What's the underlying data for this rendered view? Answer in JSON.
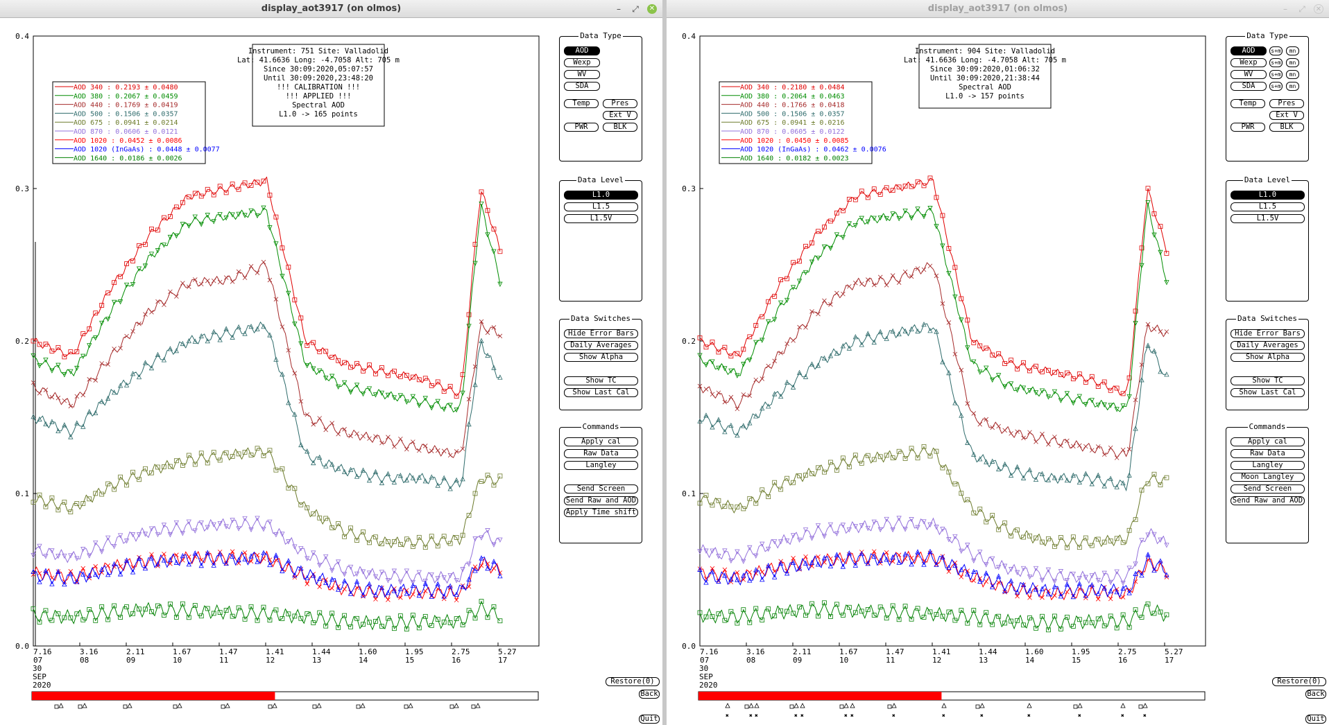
{
  "windows": [
    {
      "title": "display_aot3917 (on olmos)",
      "info": [
        "Instrument: 751 Site: Valladolid",
        "Lat: 41.6636 Long: -4.7058 Alt: 705 m",
        "Since 30:09:2020,05:07:57",
        "Until 30:09:2020,23:48:20",
        "!!! CALIBRATION !!!",
        "!!!   APPLIED   !!!",
        "Spectral AOD",
        "L1.0 -> 165 points"
      ],
      "legend": [
        {
          "label": "AOD 340  : 0.2193 ± 0.0480",
          "color": "#e00000"
        },
        {
          "label": "AOD 380  : 0.2067 ± 0.0459",
          "color": "#008c00"
        },
        {
          "label": "AOD 440  : 0.1769 ± 0.0419",
          "color": "#a52a2a"
        },
        {
          "label": "AOD 500  : 0.1506 ± 0.0357",
          "color": "#2e6b6b"
        },
        {
          "label": "AOD 675  : 0.0941 ± 0.0214",
          "color": "#6b7a2a"
        },
        {
          "label": "AOD 870  : 0.0606 ± 0.0121",
          "color": "#9370db"
        },
        {
          "label": "AOD 1020  : 0.0452 ± 0.0086",
          "color": "#ff0000"
        },
        {
          "label": "AOD 1020 (InGaAs)  : 0.0448 ± 0.0077",
          "color": "#0000ff"
        },
        {
          "label": "AOD 1640  : 0.0186 ± 0.0026",
          "color": "#008000"
        }
      ],
      "commands": [
        "Apply cal",
        "Raw Data",
        "Langley",
        "Send Screen",
        "Send Raw and AOD",
        "Apply Time shift"
      ],
      "data_type_mini": false
    },
    {
      "title": "display_aot3917 (on olmos)",
      "info": [
        "Instrument: 904 Site: Valladolid",
        "Lat: 41.6636 Long: -4.7058 Alt: 705 m",
        "Since 30:09:2020,01:06:32",
        "Until 30:09:2020,21:38:44",
        "Spectral AOD",
        "L1.0 -> 157 points"
      ],
      "legend": [
        {
          "label": "AOD 340  : 0.2180 ± 0.0484",
          "color": "#e00000"
        },
        {
          "label": "AOD 380  : 0.2064 ± 0.0463",
          "color": "#008c00"
        },
        {
          "label": "AOD 440  : 0.1766 ± 0.0418",
          "color": "#a52a2a"
        },
        {
          "label": "AOD 500  : 0.1506 ± 0.0357",
          "color": "#2e6b6b"
        },
        {
          "label": "AOD 675  : 0.0941 ± 0.0216",
          "color": "#6b7a2a"
        },
        {
          "label": "AOD 870  : 0.0605 ± 0.0122",
          "color": "#9370db"
        },
        {
          "label": "AOD 1020  : 0.0450 ± 0.0085",
          "color": "#ff0000"
        },
        {
          "label": "AOD 1020 (InGaAs)  : 0.0462 ± 0.0076",
          "color": "#0000ff"
        },
        {
          "label": "AOD 1640  : 0.0182 ± 0.0023",
          "color": "#008000"
        }
      ],
      "commands": [
        "Apply cal",
        "Raw Data",
        "Langley",
        "Moon Langley",
        "Send Screen",
        "Send Raw and AOD"
      ],
      "data_type_mini": true
    }
  ],
  "y_ticks": [
    "0.0",
    "0.1",
    "0.2",
    "0.3",
    "0.4"
  ],
  "x_ticks": [
    {
      "top": "7.16",
      "bottom": "07"
    },
    {
      "top": "3.16",
      "bottom": "08"
    },
    {
      "top": "2.11",
      "bottom": "09"
    },
    {
      "top": "1.67",
      "bottom": "10"
    },
    {
      "top": "1.47",
      "bottom": "11"
    },
    {
      "top": "1.41",
      "bottom": "12"
    },
    {
      "top": "1.44",
      "bottom": "13"
    },
    {
      "top": "1.60",
      "bottom": "14"
    },
    {
      "top": "1.95",
      "bottom": "15"
    },
    {
      "top": "2.75",
      "bottom": "16"
    },
    {
      "top": "5.27",
      "bottom": "17"
    }
  ],
  "date_label": [
    "30",
    "SEP",
    "2020"
  ],
  "data_type": {
    "title": "Data Type",
    "buttons": [
      "AOD",
      "Wexp",
      "WV",
      "SDA"
    ],
    "extra": [
      "Temp",
      "Pres",
      "Ext V",
      "PWR",
      "BLK"
    ],
    "mini_label": "s+m",
    "mini_label2": "mn"
  },
  "data_level": {
    "title": "Data Level",
    "buttons": [
      "L1.0",
      "L1.5",
      "L1.5V"
    ]
  },
  "data_switches": {
    "title": "Data Switches",
    "buttons": [
      "Hide Error Bars",
      "Daily Averages",
      "Show Alpha",
      "Show TC",
      "Show Last Cal"
    ]
  },
  "commands_title": "Commands",
  "restore": "Restore(0)",
  "back": "Back",
  "quit": "Quit",
  "chart_data": {
    "type": "line",
    "x": [
      5,
      6,
      7,
      8,
      9,
      10,
      11,
      12,
      13,
      14,
      15,
      16,
      16.5,
      17
    ],
    "xlim": [
      5,
      18
    ],
    "ylim": [
      0,
      0.4
    ],
    "series": [
      {
        "name": "AOD 340",
        "values": [
          0.2,
          0.19,
          0.235,
          0.27,
          0.295,
          0.3,
          0.305,
          0.2,
          0.185,
          0.18,
          0.175,
          0.165,
          0.3,
          0.26
        ]
      },
      {
        "name": "AOD 380",
        "values": [
          0.188,
          0.178,
          0.22,
          0.255,
          0.278,
          0.282,
          0.285,
          0.185,
          0.17,
          0.165,
          0.16,
          0.155,
          0.29,
          0.24
        ]
      },
      {
        "name": "AOD 440",
        "values": [
          0.17,
          0.158,
          0.19,
          0.22,
          0.238,
          0.24,
          0.25,
          0.15,
          0.14,
          0.135,
          0.13,
          0.125,
          0.21,
          0.205
        ]
      },
      {
        "name": "AOD 500",
        "values": [
          0.15,
          0.14,
          0.165,
          0.185,
          0.2,
          0.205,
          0.21,
          0.125,
          0.115,
          0.11,
          0.11,
          0.105,
          0.2,
          0.175
        ]
      },
      {
        "name": "AOD 675",
        "values": [
          0.097,
          0.09,
          0.105,
          0.115,
          0.122,
          0.125,
          0.128,
          0.09,
          0.075,
          0.068,
          0.068,
          0.07,
          0.11,
          0.108
        ]
      },
      {
        "name": "AOD 870",
        "values": [
          0.063,
          0.058,
          0.068,
          0.075,
          0.078,
          0.08,
          0.08,
          0.06,
          0.05,
          0.046,
          0.045,
          0.045,
          0.075,
          0.067
        ]
      },
      {
        "name": "AOD 1020",
        "values": [
          0.048,
          0.045,
          0.052,
          0.056,
          0.058,
          0.058,
          0.058,
          0.045,
          0.037,
          0.034,
          0.035,
          0.034,
          0.055,
          0.049
        ]
      },
      {
        "name": "AOD 1020 (InGaAs)",
        "values": [
          0.046,
          0.044,
          0.05,
          0.055,
          0.057,
          0.057,
          0.058,
          0.047,
          0.039,
          0.036,
          0.037,
          0.036,
          0.056,
          0.05
        ]
      },
      {
        "name": "AOD 1640",
        "values": [
          0.02,
          0.019,
          0.022,
          0.024,
          0.023,
          0.022,
          0.021,
          0.019,
          0.016,
          0.015,
          0.016,
          0.016,
          0.025,
          0.02
        ]
      }
    ],
    "progress_fraction": [
      0.48,
      0.48
    ]
  }
}
